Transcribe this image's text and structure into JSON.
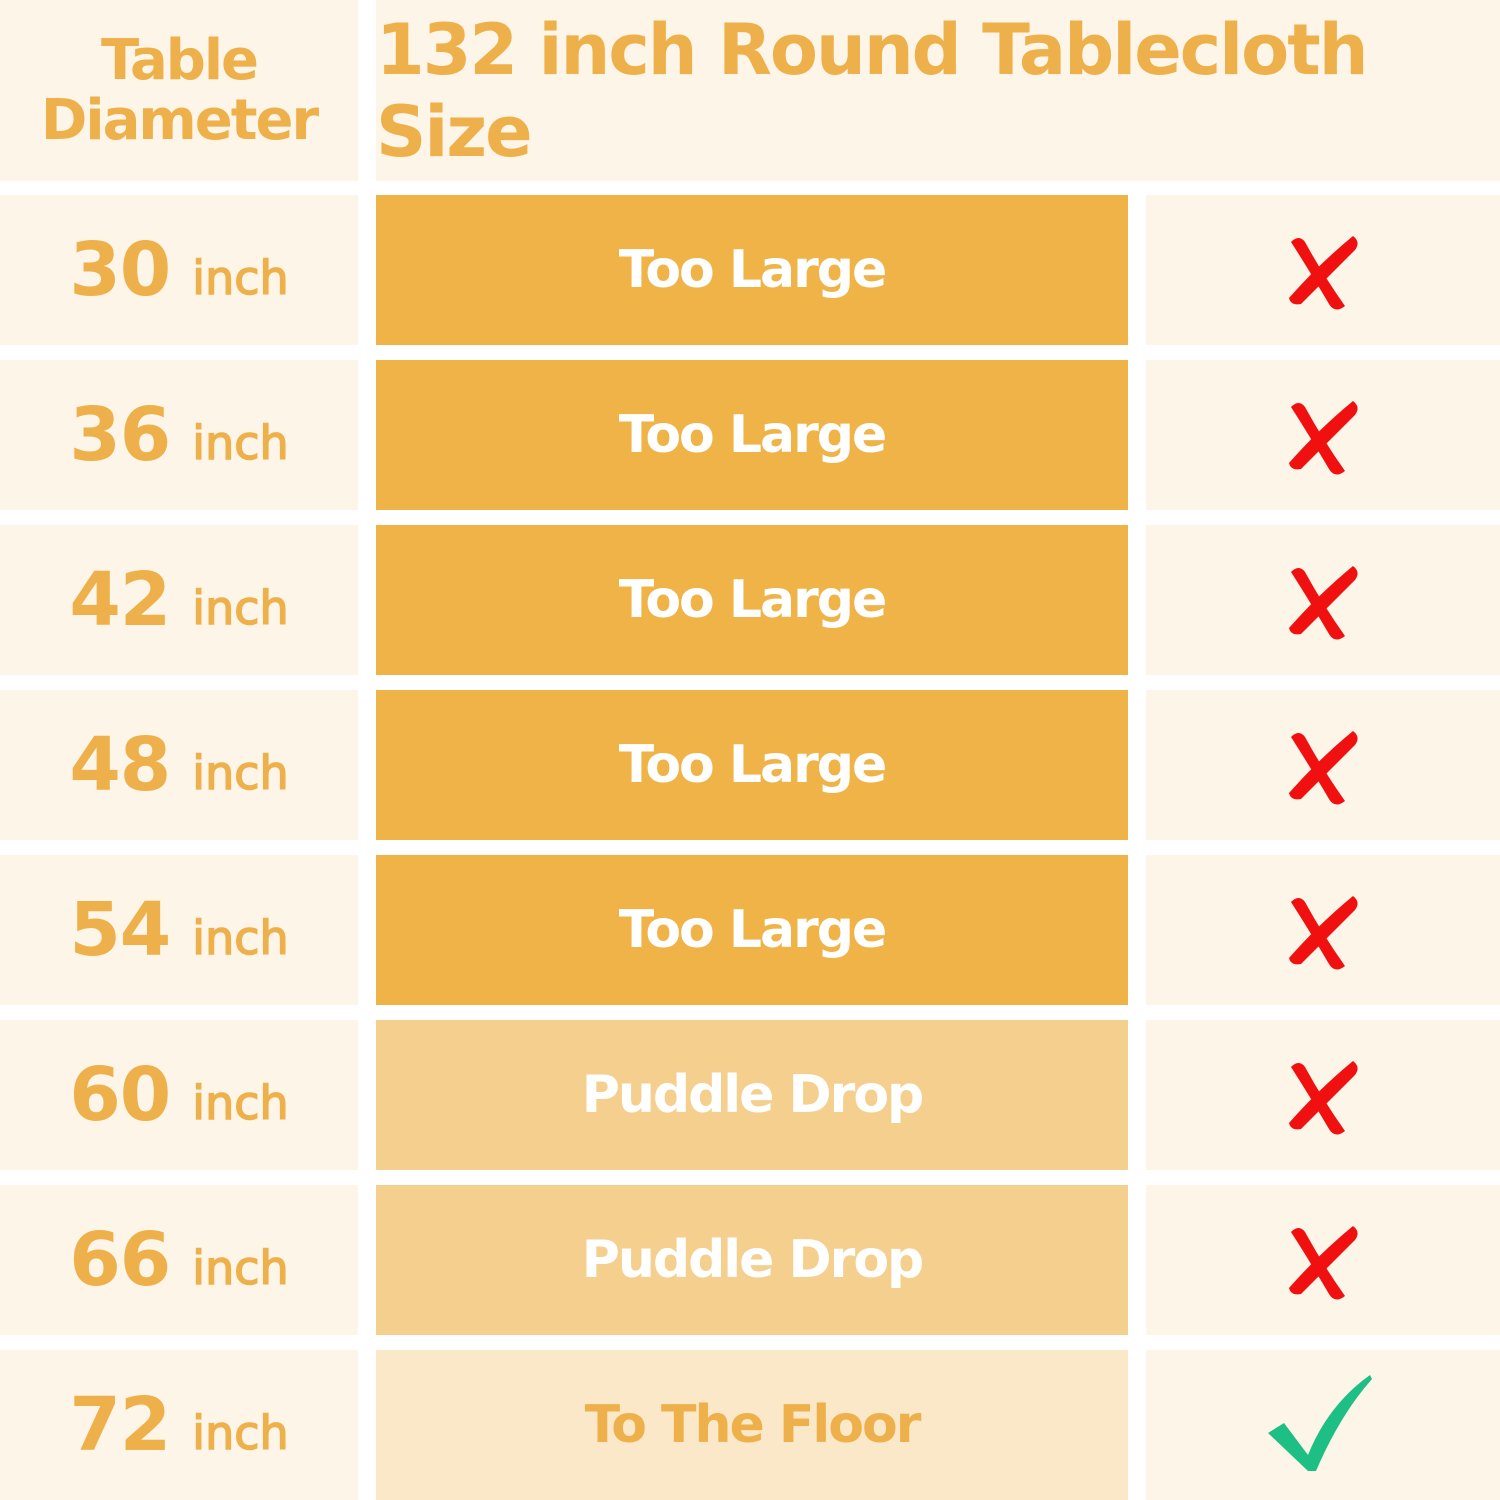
{
  "header": {
    "col1_line1": "Table",
    "col1_line2": "Diameter",
    "title": "132 inch Round Tablecloth Size"
  },
  "colors": {
    "too_large": "#f0b348",
    "puddle_drop": "#f5cf8e",
    "to_the_floor": "#fbe8c8",
    "cross": "#f01010",
    "check": "#1dbf85",
    "text_orange": "#eeb04a"
  },
  "rows": [
    {
      "diameter": "30",
      "unit": "inch",
      "status": "Too Large",
      "fit": "cross-icon"
    },
    {
      "diameter": "36",
      "unit": "inch",
      "status": "Too Large",
      "fit": "cross-icon"
    },
    {
      "diameter": "42",
      "unit": "inch",
      "status": "Too Large",
      "fit": "cross-icon"
    },
    {
      "diameter": "48",
      "unit": "inch",
      "status": "Too Large",
      "fit": "cross-icon"
    },
    {
      "diameter": "54",
      "unit": "inch",
      "status": "Too Large",
      "fit": "cross-icon"
    },
    {
      "diameter": "60",
      "unit": "inch",
      "status": "Puddle Drop",
      "fit": "cross-icon"
    },
    {
      "diameter": "66",
      "unit": "inch",
      "status": "Puddle Drop",
      "fit": "cross-icon"
    },
    {
      "diameter": "72",
      "unit": "inch",
      "status": "To The Floor",
      "fit": "check-icon"
    }
  ]
}
